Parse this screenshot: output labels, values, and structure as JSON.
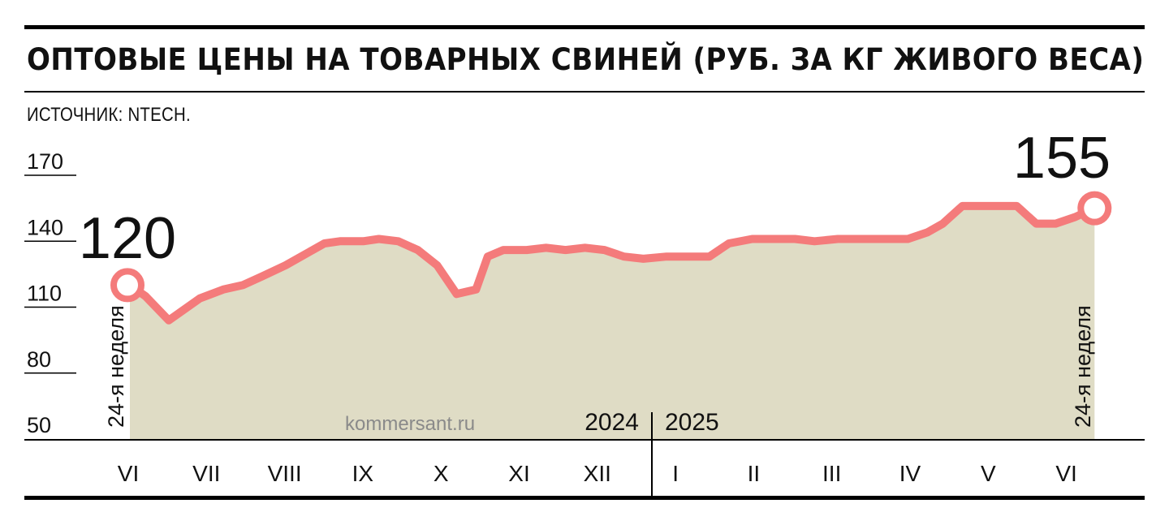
{
  "header": {
    "title": "ОПТОВЫЕ ЦЕНЫ НА ТОВАРНЫХ СВИНЕЙ (РУБ. ЗА КГ ЖИВОГО ВЕСА)",
    "source": "ИСТОЧНИК: NTECH."
  },
  "watermark": "kommersant.ru",
  "colors": {
    "line": "#f47b7b",
    "area": "#dfdcc5",
    "text": "#111111",
    "rules": "#000000"
  },
  "chart_data": {
    "type": "area",
    "title": "ОПТОВЫЕ ЦЕНЫ НА ТОВАРНЫХ СВИНЕЙ (РУБ. ЗА КГ ЖИВОГО ВЕСА)",
    "ylim": [
      50,
      170
    ],
    "y_ticks": [
      "170",
      "140",
      "110",
      "80",
      "50"
    ],
    "x_months": [
      "VI",
      "VII",
      "VIII",
      "IX",
      "X",
      "XI",
      "XII",
      "I",
      "II",
      "III",
      "IV",
      "V",
      "VI"
    ],
    "years": [
      "2024",
      "2025"
    ],
    "start_label": "24-я неделя",
    "end_label": "24-я неделя",
    "start_value": "120",
    "end_value": "155",
    "series": [
      {
        "values": [
          [
            0.0,
            120
          ],
          [
            0.2,
            115
          ],
          [
            0.5,
            104
          ],
          [
            0.9,
            114
          ],
          [
            1.2,
            118
          ],
          [
            1.45,
            120
          ],
          [
            1.7,
            124
          ],
          [
            2.0,
            129
          ],
          [
            2.3,
            135
          ],
          [
            2.5,
            139
          ],
          [
            2.7,
            140
          ],
          [
            3.0,
            140
          ],
          [
            3.2,
            141
          ],
          [
            3.45,
            140
          ],
          [
            3.7,
            136
          ],
          [
            3.95,
            129
          ],
          [
            4.2,
            116
          ],
          [
            4.45,
            118
          ],
          [
            4.6,
            133
          ],
          [
            4.8,
            136
          ],
          [
            5.1,
            136
          ],
          [
            5.35,
            137
          ],
          [
            5.6,
            136
          ],
          [
            5.85,
            137
          ],
          [
            6.1,
            136
          ],
          [
            6.35,
            133
          ],
          [
            6.6,
            132
          ],
          [
            6.9,
            133
          ],
          [
            7.2,
            133
          ],
          [
            7.45,
            133
          ],
          [
            7.7,
            139
          ],
          [
            8.0,
            141
          ],
          [
            8.3,
            141
          ],
          [
            8.55,
            141
          ],
          [
            8.8,
            140
          ],
          [
            9.1,
            141
          ],
          [
            9.4,
            141
          ],
          [
            9.7,
            141
          ],
          [
            10.0,
            141
          ],
          [
            10.25,
            144
          ],
          [
            10.45,
            148
          ],
          [
            10.7,
            156
          ],
          [
            10.95,
            156
          ],
          [
            11.2,
            156
          ],
          [
            11.4,
            156
          ],
          [
            11.65,
            148
          ],
          [
            11.9,
            148
          ],
          [
            12.15,
            151
          ],
          [
            12.4,
            155
          ]
        ]
      }
    ]
  }
}
